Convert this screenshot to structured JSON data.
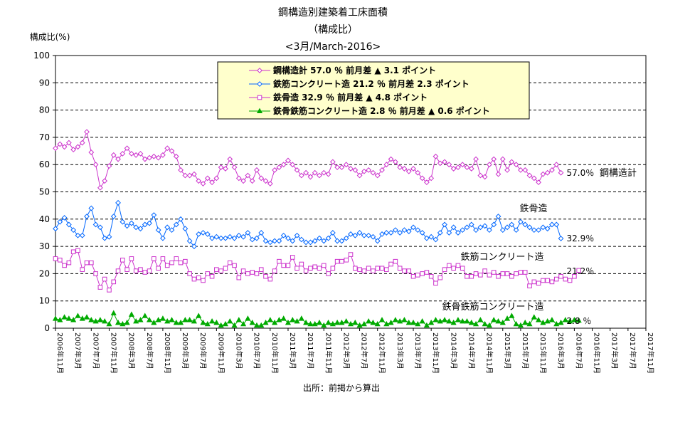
{
  "chart_data": {
    "type": "line",
    "title": "鋼構造別建築着工床面積",
    "subtitle": "（構成比）",
    "period": "<3月/March-2016>",
    "ylabel": "構成比(%)",
    "ylim": [
      0,
      100
    ],
    "yticks": [
      "0",
      "10",
      "20",
      "30",
      "40",
      "50",
      "60",
      "70",
      "80",
      "90",
      "100"
    ],
    "xtick_labels": [
      "2006年11月",
      "2007年3月",
      "2007年7月",
      "2007年11月",
      "2008年3月",
      "2008年7月",
      "2008年11月",
      "2009年3月",
      "2009年7月",
      "2009年11月",
      "2010年3月",
      "2010年7月",
      "2010年11月",
      "2011年3月",
      "2011年7月",
      "2011年11月",
      "2012年3月",
      "2012年7月",
      "2012年11月",
      "2013年3月",
      "2013年7月",
      "2013年11月",
      "2014年3月",
      "2014年7月",
      "2014年11月",
      "2015年3月",
      "2015年7月",
      "2015年11月",
      "2016年3月",
      "2016年7月",
      "2016年11月",
      "2017年3月",
      "2017年7月",
      "2017年11月"
    ],
    "source": "出所：前掲から算出",
    "legend": [
      "鋼構造計 57.0 ％ 前月差 ▲ 3.1 ポイント",
      "鉄筋コンクリート造 21.2 ％ 前月差 2.3 ポイント",
      "鉄骨造 32.9 ％ 前月差 ▲ 4.8 ポイント",
      "鉄骨鉄筋コンクリート造 2.8 ％ 前月差 ▲ 0.6 ポイント"
    ],
    "legend_position": "top-center",
    "grid": true,
    "series": [
      {
        "name": "鋼構造計",
        "color": "#cc33cc",
        "marker": "diamond",
        "end_label": "57.0％",
        "series_label": "鋼構造計",
        "values": [
          66,
          67.5,
          66.5,
          68,
          65.5,
          66.5,
          68,
          72,
          64.5,
          60,
          51.5,
          54,
          59.5,
          63.5,
          62,
          64,
          66,
          64,
          63.5,
          64,
          62,
          62.5,
          63,
          62.5,
          63.5,
          66,
          65,
          63,
          58,
          56,
          56,
          56.5,
          54,
          53,
          55,
          53.5,
          55,
          59,
          58.5,
          62,
          59,
          55,
          54,
          56,
          54,
          58,
          55,
          54,
          53,
          58,
          59,
          60,
          61.5,
          60,
          58,
          56,
          57,
          55.5,
          57,
          56,
          57,
          56.5,
          61,
          59,
          59,
          60,
          58.5,
          58,
          56,
          57.5,
          58,
          57,
          56,
          58,
          60,
          62,
          61,
          59,
          58.5,
          57.5,
          58.5,
          57,
          55,
          53.5,
          55,
          63,
          60.5,
          61,
          60,
          58.5,
          59,
          60,
          59,
          58.5,
          62,
          56,
          55.5,
          60,
          62,
          56.5,
          62,
          58,
          61,
          60,
          58,
          58,
          56,
          55,
          53.5,
          56.5,
          57,
          58,
          60,
          57
        ]
      },
      {
        "name": "鉄骨造",
        "color": "#0066ff",
        "marker": "diamond",
        "end_label": "32.9％",
        "series_label": "鉄骨造",
        "values": [
          36.5,
          39,
          40.5,
          38,
          36,
          34,
          34,
          41,
          44,
          38,
          37,
          33,
          33.5,
          41,
          46,
          39,
          37.5,
          38.5,
          37,
          36.5,
          38,
          38.5,
          41.5,
          36,
          33,
          37,
          36,
          38,
          40,
          36.5,
          32,
          30,
          34.5,
          35,
          34.5,
          33,
          33.5,
          33,
          33,
          33.5,
          33,
          34,
          33.5,
          35,
          32.5,
          33,
          35,
          32,
          31.5,
          32,
          32,
          34,
          33,
          32,
          34,
          32.5,
          31.5,
          31.5,
          32,
          33,
          32,
          33,
          35,
          32,
          32,
          33,
          34.5,
          34,
          35,
          34,
          34,
          33.5,
          32,
          34.5,
          35,
          35,
          36,
          35,
          36,
          35.5,
          37,
          36,
          35,
          33,
          33.5,
          32.5,
          35,
          38,
          35,
          37,
          35,
          36,
          37,
          38,
          36,
          37,
          37.5,
          36,
          38,
          41,
          36,
          37,
          38,
          36,
          39,
          38,
          37,
          36,
          36,
          37,
          36.5,
          38,
          38,
          32.9
        ]
      },
      {
        "name": "鉄筋コンクリート造",
        "color": "#cc33cc",
        "marker": "square",
        "end_label": "21.2％",
        "series_label": "鉄筋コンクリート造",
        "values": [
          25.5,
          25,
          23,
          24,
          28,
          28.5,
          21.5,
          24,
          24,
          20,
          15,
          18,
          14,
          17,
          21,
          25,
          21.5,
          25.5,
          21,
          21.5,
          20.5,
          21,
          25.5,
          22,
          25.5,
          23,
          24,
          25.5,
          24,
          24.5,
          20,
          18,
          18.5,
          17.5,
          20,
          19,
          21.5,
          21,
          22,
          24,
          23,
          18.5,
          21,
          20,
          20.5,
          20,
          21.5,
          19,
          18,
          21,
          24.5,
          23,
          23,
          26,
          22,
          23.5,
          21,
          22,
          22.5,
          22,
          23,
          20,
          22,
          24.5,
          24.5,
          25,
          27,
          22,
          21.5,
          21,
          22,
          21,
          22,
          22,
          21.5,
          23.5,
          24.5,
          22,
          21,
          21,
          19,
          19.5,
          20,
          20.5,
          19,
          16.5,
          18.5,
          21.5,
          23,
          22,
          23,
          22,
          19,
          19,
          20,
          19.5,
          21,
          19.5,
          20.5,
          19,
          20,
          20,
          19,
          20,
          20.5,
          20.5,
          15.5,
          17,
          16.5,
          17.5,
          17.5,
          17,
          18,
          19,
          18,
          17.5,
          19,
          21.2
        ]
      },
      {
        "name": "鉄骨鉄筋コンクリート造",
        "color": "#00aa00",
        "marker": "triangle",
        "end_label": "2.8 ％",
        "series_label": "鉄骨鉄筋コンクリート造",
        "values": [
          3.5,
          3,
          4,
          3.5,
          3,
          4.5,
          3.5,
          4,
          3,
          2.5,
          3,
          2.5,
          1.5,
          5.5,
          2,
          1.5,
          2,
          5,
          2.5,
          3,
          4.5,
          3,
          2,
          3,
          3.5,
          2.5,
          3,
          2,
          2,
          3,
          3,
          2.5,
          4.5,
          2,
          1.5,
          2.5,
          2,
          1,
          1.5,
          2.5,
          1,
          3,
          1.5,
          3.5,
          2,
          1,
          1,
          2,
          3,
          2,
          3,
          3.5,
          2,
          3,
          2.5,
          3.5,
          2,
          1.5,
          1.5,
          2,
          1,
          2,
          1.5,
          2,
          2,
          2.5,
          1.5,
          2,
          1,
          1.5,
          2.5,
          2,
          1.5,
          3,
          1.5,
          2,
          3,
          2.5,
          3,
          2,
          2,
          1.5,
          2.5,
          1,
          2,
          3,
          2.5,
          3,
          2.5,
          2,
          3,
          2.5,
          2.5,
          2,
          1.5,
          3,
          1.5,
          1,
          3,
          2.5,
          2,
          3.5,
          4.5,
          1.5,
          1,
          2,
          1.5,
          4,
          3,
          2,
          2.5,
          3,
          1.5,
          2,
          3,
          2.5,
          3,
          2.8
        ]
      }
    ]
  }
}
